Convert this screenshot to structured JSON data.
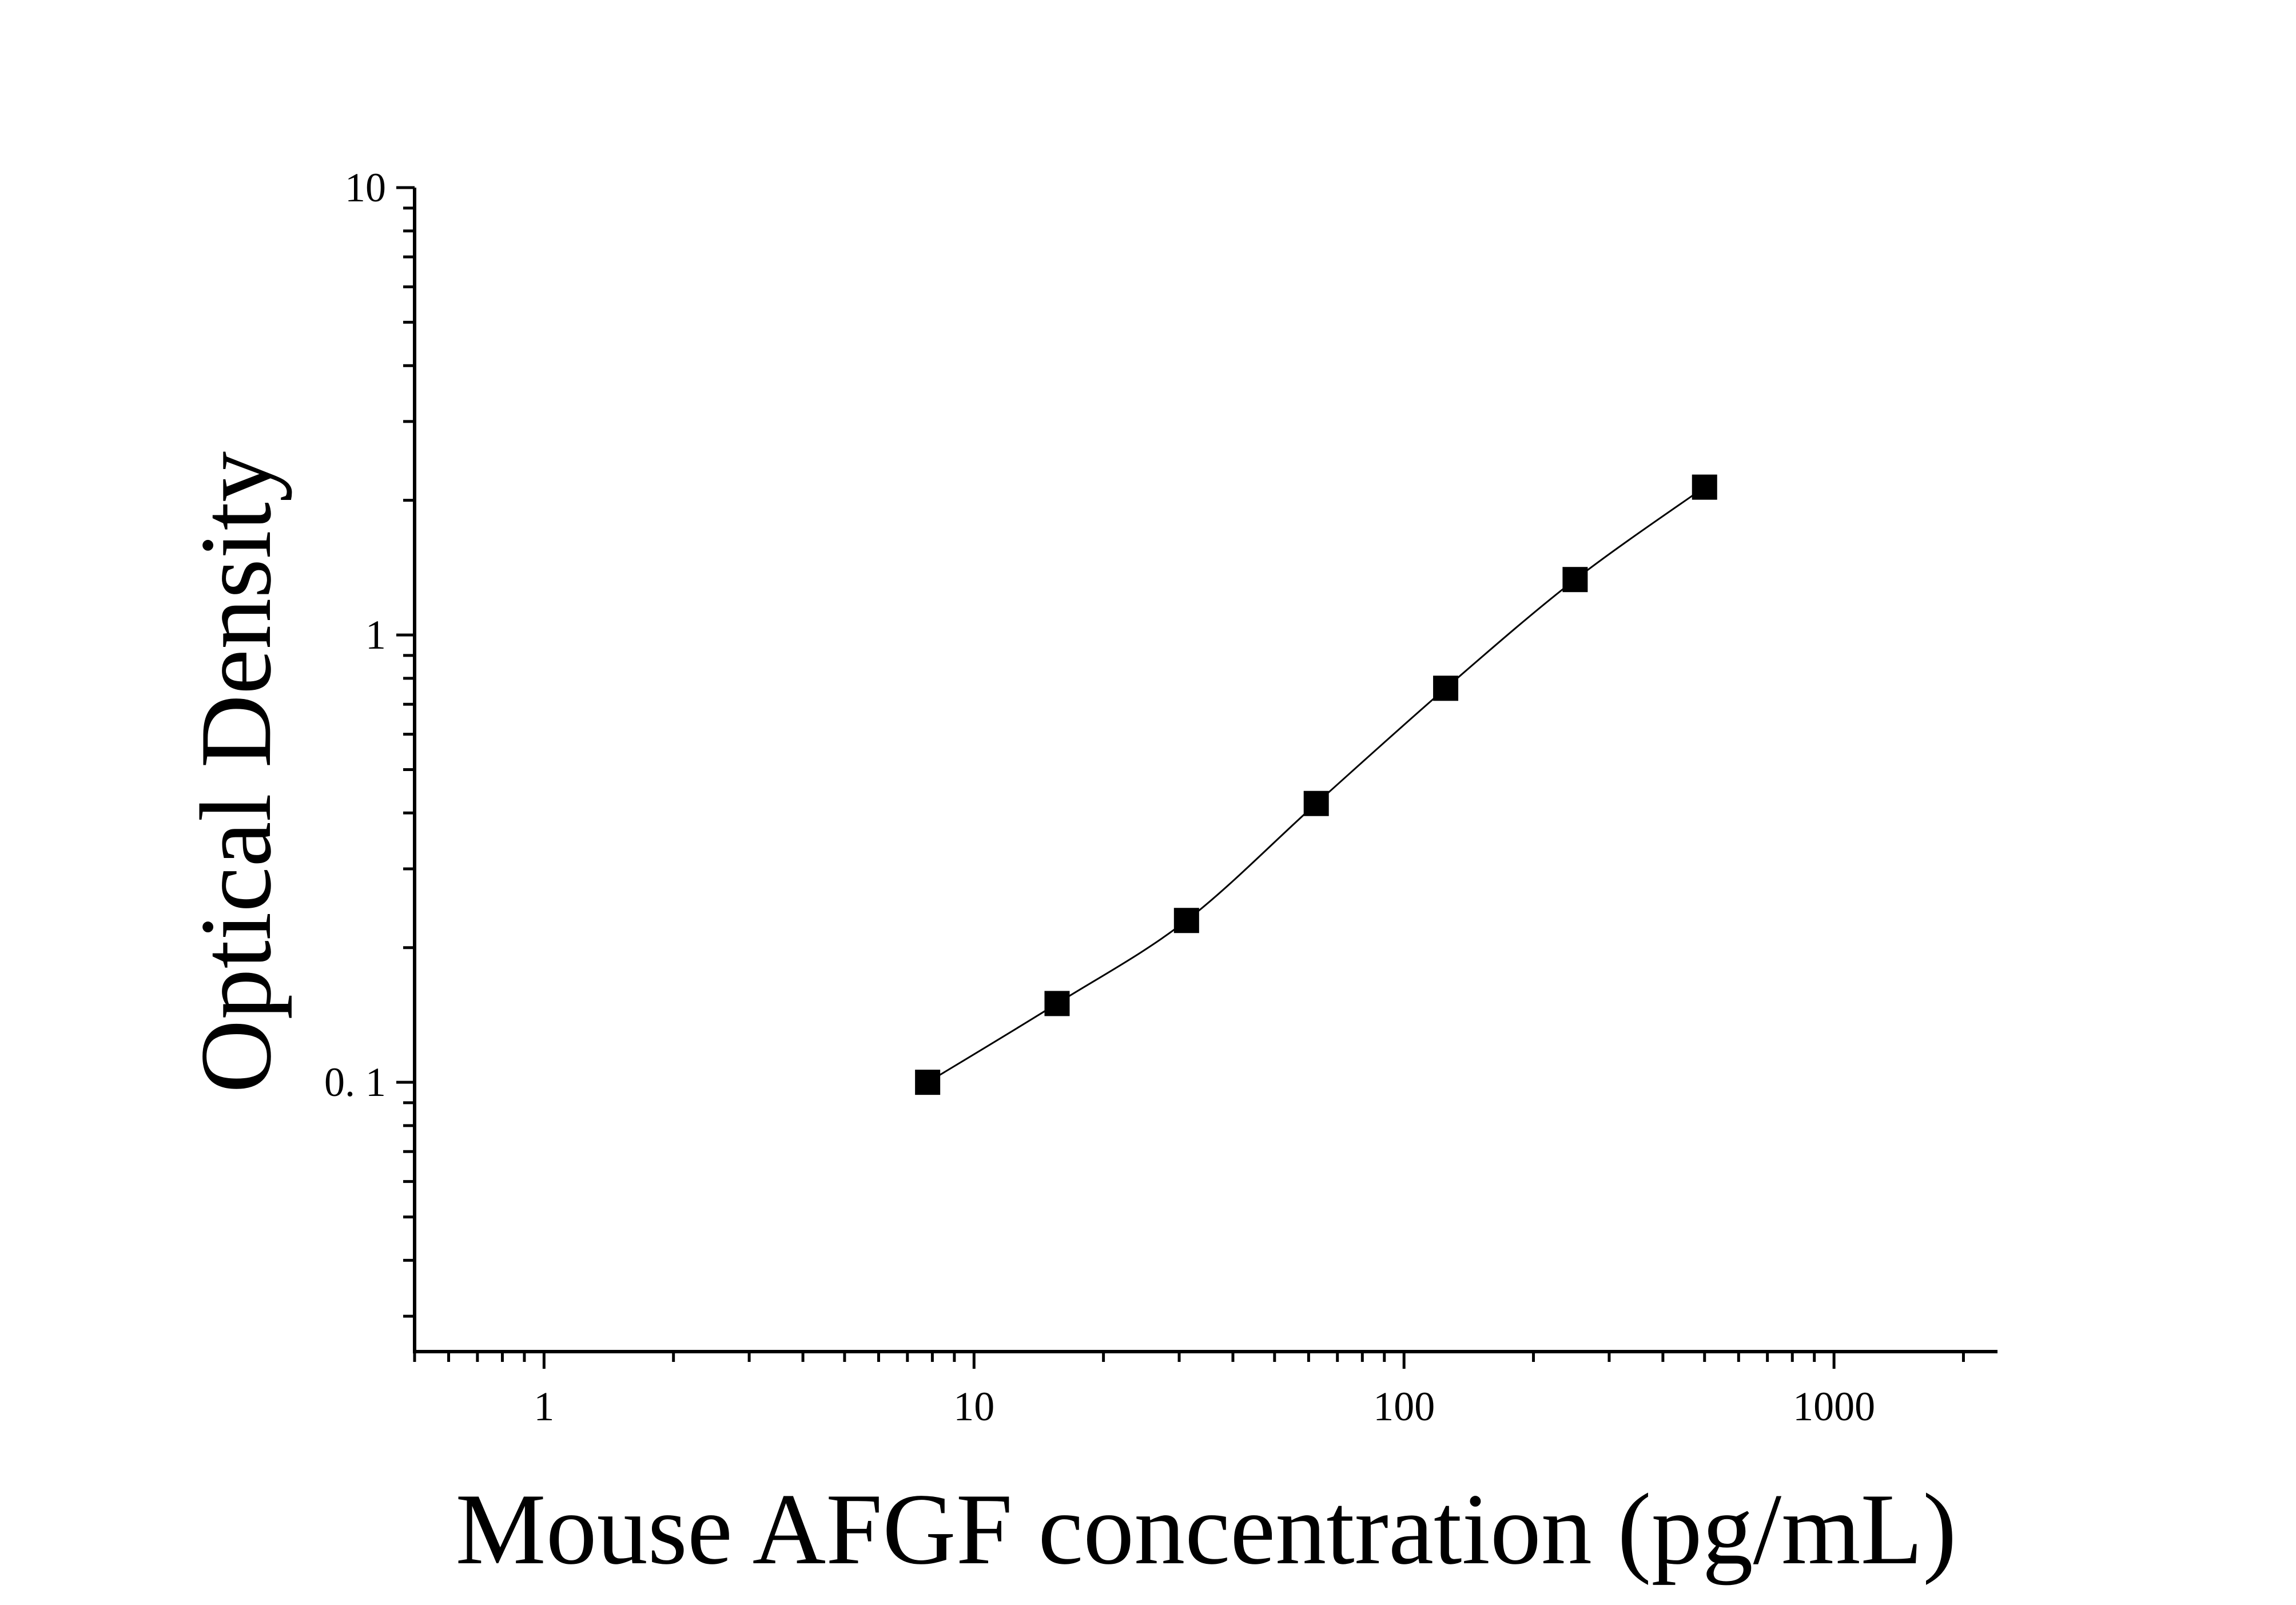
{
  "chart_data": {
    "type": "scatter",
    "xlabel": "Mouse AFGF concentration (pg/mL)",
    "ylabel": "Optical Density",
    "xscale": "log",
    "yscale": "log",
    "xlim": [
      0.5,
      2400
    ],
    "ylim": [
      0.025,
      10
    ],
    "x_ticks": [
      {
        "value": 1,
        "label": "1"
      },
      {
        "value": 10,
        "label": "10"
      },
      {
        "value": 100,
        "label": "100"
      },
      {
        "value": 1000,
        "label": "1000"
      }
    ],
    "y_ticks": [
      {
        "value": 0.1,
        "label": "0. 1"
      },
      {
        "value": 1,
        "label": "1"
      },
      {
        "value": 10,
        "label": "10"
      }
    ],
    "grid": false,
    "legend": "none",
    "series": [
      {
        "marker": "square",
        "color": "#000000",
        "fit": "smooth curve",
        "x": [
          7.8,
          15.6,
          31.2,
          62.5,
          125,
          250,
          500
        ],
        "y": [
          0.1,
          0.15,
          0.23,
          0.42,
          0.76,
          1.33,
          2.14
        ]
      }
    ]
  }
}
